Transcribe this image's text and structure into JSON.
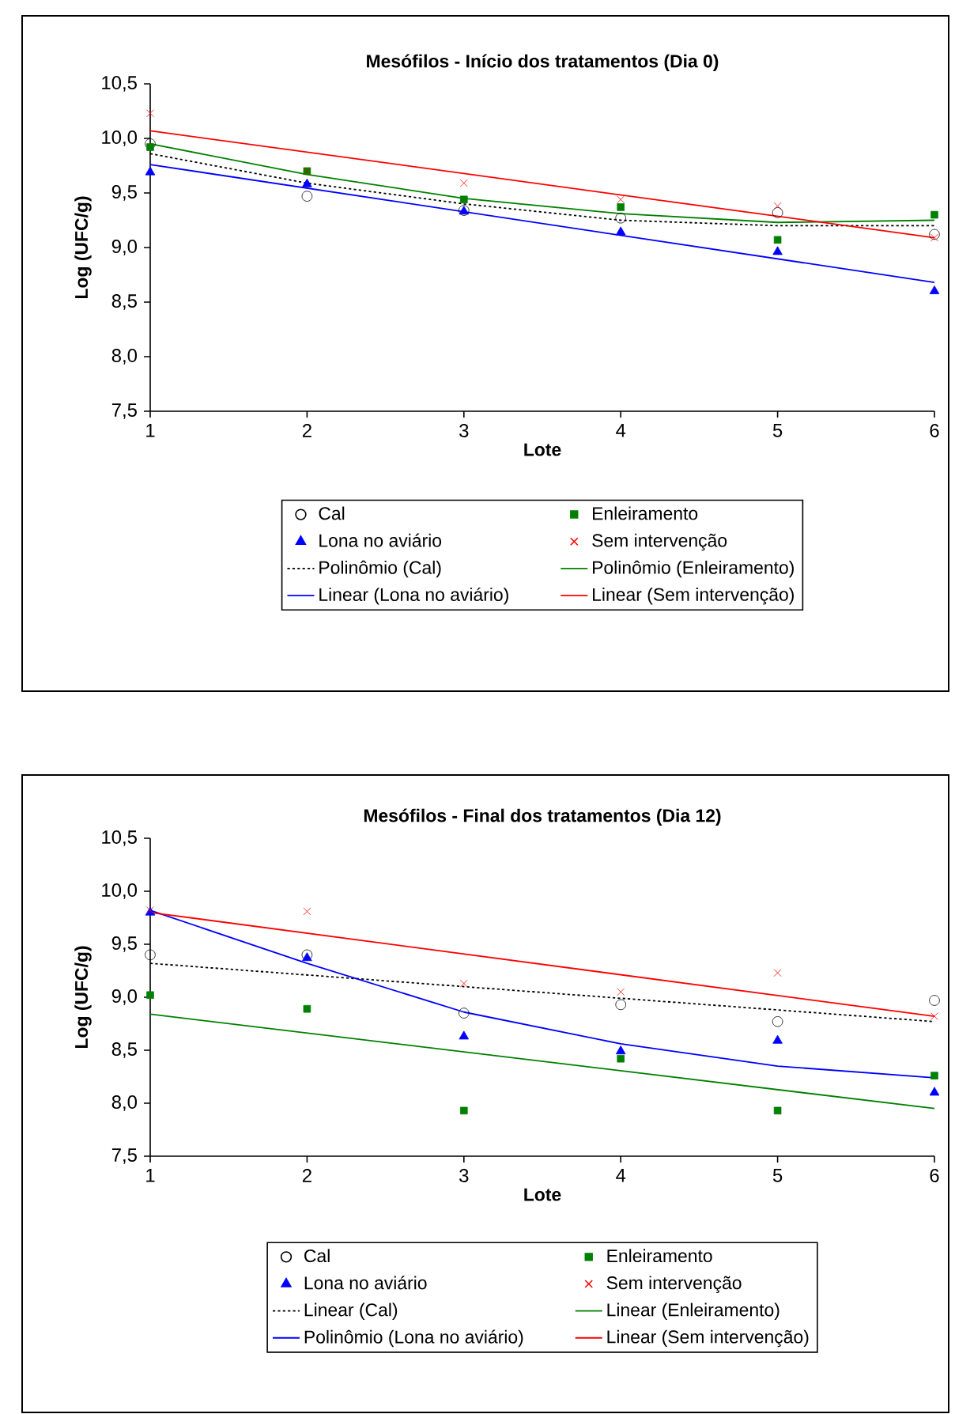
{
  "chart_data": [
    {
      "type": "scatter",
      "title": "Mesófilos - Início dos tratamentos (Dia 0)",
      "xlabel": "Lote",
      "ylabel": "Log (UFC/g)",
      "xlim": [
        1,
        6
      ],
      "ylim": [
        7.5,
        10.5
      ],
      "xticks": [
        1,
        2,
        3,
        4,
        5,
        6
      ],
      "yticks": [
        {
          "value": 7.5,
          "label": "7,5"
        },
        {
          "value": 8.0,
          "label": "8,0"
        },
        {
          "value": 8.5,
          "label": "8,5"
        },
        {
          "value": 9.0,
          "label": "9,0"
        },
        {
          "value": 9.5,
          "label": "9,5"
        },
        {
          "value": 10.0,
          "label": "10,0"
        },
        {
          "value": 10.5,
          "label": "10,5"
        }
      ],
      "legend": "bottom",
      "grid": false,
      "series": [
        {
          "name": "Cal",
          "type": "scatter",
          "marker": "circle",
          "color": "#000000",
          "x": [
            1,
            2,
            3,
            4,
            5,
            6
          ],
          "values": [
            9.95,
            9.47,
            9.34,
            9.27,
            9.32,
            9.12
          ]
        },
        {
          "name": "Enleiramento",
          "type": "scatter",
          "marker": "square",
          "color": "#008000",
          "x": [
            1,
            2,
            3,
            4,
            5,
            6
          ],
          "values": [
            9.92,
            9.7,
            9.44,
            9.37,
            9.07,
            9.3
          ]
        },
        {
          "name": "Lona no aviário",
          "type": "scatter",
          "marker": "triangle",
          "color": "#0000ff",
          "x": [
            1,
            2,
            3,
            4,
            5,
            6
          ],
          "values": [
            9.69,
            9.58,
            9.33,
            9.14,
            8.96,
            8.6
          ]
        },
        {
          "name": "Sem intervenção",
          "type": "scatter",
          "marker": "cross",
          "color": "#ff0000",
          "x": [
            1,
            2,
            3,
            4,
            5,
            6
          ],
          "values": [
            10.23,
            9.7,
            9.59,
            9.44,
            9.38,
            9.09
          ]
        },
        {
          "name": "Polinômio (Cal)",
          "type": "line",
          "line_style": "dotted",
          "color": "#000000",
          "x": [
            1,
            2,
            3,
            4,
            5,
            6
          ],
          "values": [
            9.86,
            9.59,
            9.4,
            9.25,
            9.2,
            9.2
          ]
        },
        {
          "name": "Polinômio (Enleiramento)",
          "type": "line",
          "line_style": "solid",
          "color": "#008000",
          "x": [
            1,
            2,
            3,
            4,
            5,
            6
          ],
          "values": [
            9.95,
            9.67,
            9.45,
            9.31,
            9.23,
            9.25
          ]
        },
        {
          "name": "Linear (Lona no aviário)",
          "type": "line",
          "line_style": "solid",
          "color": "#0000ff",
          "x": [
            1,
            6
          ],
          "values": [
            9.76,
            8.68
          ]
        },
        {
          "name": "Linear (Sem intervenção)",
          "type": "line",
          "line_style": "solid",
          "color": "#ff0000",
          "x": [
            1,
            6
          ],
          "values": [
            10.07,
            9.09
          ]
        }
      ]
    },
    {
      "type": "scatter",
      "title": "Mesófilos - Final dos tratamentos (Dia 12)",
      "xlabel": "Lote",
      "ylabel": "Log (UFC/g)",
      "xlim": [
        1,
        6
      ],
      "ylim": [
        7.5,
        10.5
      ],
      "xticks": [
        1,
        2,
        3,
        4,
        5,
        6
      ],
      "yticks": [
        {
          "value": 7.5,
          "label": "7,5"
        },
        {
          "value": 8.0,
          "label": "8,0"
        },
        {
          "value": 8.5,
          "label": "8,5"
        },
        {
          "value": 9.0,
          "label": "9,0"
        },
        {
          "value": 9.5,
          "label": "9,5"
        },
        {
          "value": 10.0,
          "label": "10,0"
        },
        {
          "value": 10.5,
          "label": "10,5"
        }
      ],
      "legend": "bottom",
      "grid": false,
      "series": [
        {
          "name": "Cal",
          "type": "scatter",
          "marker": "circle",
          "color": "#000000",
          "x": [
            1,
            2,
            3,
            4,
            5,
            6
          ],
          "values": [
            9.4,
            9.4,
            8.85,
            8.93,
            8.77,
            8.97
          ]
        },
        {
          "name": "Enleiramento",
          "type": "scatter",
          "marker": "square",
          "color": "#008000",
          "x": [
            1,
            2,
            3,
            4,
            5,
            6
          ],
          "values": [
            9.02,
            8.89,
            7.93,
            8.42,
            7.93,
            8.26
          ]
        },
        {
          "name": "Lona no aviário",
          "type": "scatter",
          "marker": "triangle",
          "color": "#0000ff",
          "x": [
            1,
            2,
            3,
            4,
            5,
            6
          ],
          "values": [
            9.8,
            9.37,
            8.63,
            8.49,
            8.59,
            8.1
          ]
        },
        {
          "name": "Sem intervenção",
          "type": "scatter",
          "marker": "cross",
          "color": "#ff0000",
          "x": [
            1,
            2,
            3,
            4,
            5,
            6
          ],
          "values": [
            9.82,
            9.81,
            9.13,
            9.05,
            9.23,
            8.82
          ]
        },
        {
          "name": "Linear (Cal)",
          "type": "line",
          "line_style": "dotted",
          "color": "#000000",
          "x": [
            1,
            6
          ],
          "values": [
            9.32,
            8.77
          ]
        },
        {
          "name": "Linear (Enleiramento)",
          "type": "line",
          "line_style": "solid",
          "color": "#008000",
          "x": [
            1,
            6
          ],
          "values": [
            8.84,
            7.95
          ]
        },
        {
          "name": "Polinômio (Lona no aviário)",
          "type": "line",
          "line_style": "solid",
          "color": "#0000ff",
          "x": [
            1,
            2,
            3,
            4,
            5,
            6
          ],
          "values": [
            9.82,
            9.32,
            8.86,
            8.56,
            8.35,
            8.24
          ]
        },
        {
          "name": "Linear (Sem intervenção)",
          "type": "line",
          "line_style": "solid",
          "color": "#ff0000",
          "x": [
            1,
            6
          ],
          "values": [
            9.8,
            8.82
          ]
        }
      ]
    }
  ]
}
